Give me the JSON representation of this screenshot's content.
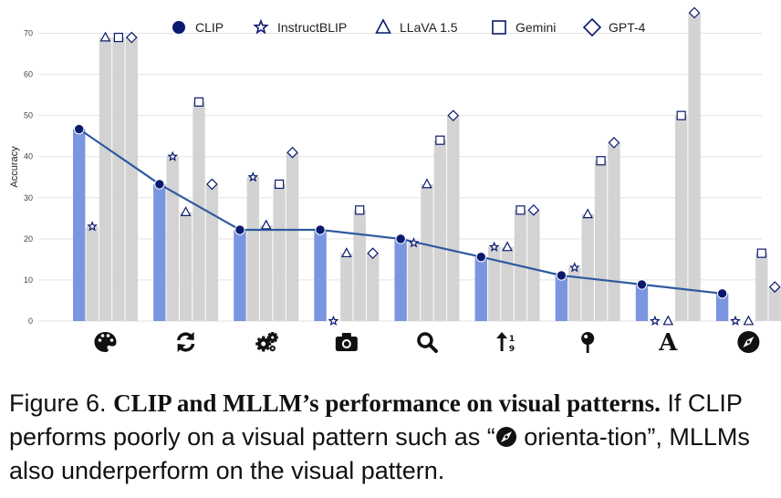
{
  "chart_data": {
    "type": "bar",
    "categories": [
      "color-appearance-icon",
      "state-condition-icon",
      "mechanical-structure-icon",
      "viewpoint-camera-icon",
      "presence-features-icon",
      "quantity-count-icon",
      "positional-context-icon",
      "text-icon",
      "orientation-direction-icon"
    ],
    "series": [
      {
        "name": "CLIP",
        "values": [
          46.7,
          33.3,
          22.2,
          22.2,
          20.0,
          15.6,
          11.1,
          8.9,
          6.7
        ],
        "color": "#7b96e0",
        "marker": "circle"
      },
      {
        "name": "InstructBLIP",
        "values": [
          23.0,
          40.0,
          35.0,
          0.0,
          19.0,
          18.0,
          13.0,
          0.0,
          0.0
        ],
        "color": "#d3d3d3",
        "marker": "star"
      },
      {
        "name": "LLaVA 1.5",
        "values": [
          69.0,
          26.5,
          23.3,
          16.5,
          33.3,
          18.0,
          26.0,
          0.0,
          0.0
        ],
        "color": "#d3d3d3",
        "marker": "triangle"
      },
      {
        "name": "Gemini",
        "values": [
          69.0,
          53.3,
          33.3,
          27.0,
          44.0,
          27.0,
          39.0,
          50.0,
          16.5
        ],
        "color": "#d3d3d3",
        "marker": "square"
      },
      {
        "name": "GPT-4",
        "values": [
          69.0,
          33.3,
          41.0,
          16.5,
          50.0,
          27.0,
          43.4,
          75.0,
          8.3
        ],
        "color": "#d3d3d3",
        "marker": "diamond"
      }
    ],
    "ylabel": "Accuracy",
    "ylim": [
      0,
      75
    ],
    "yticks": [
      0,
      10,
      20,
      30,
      40,
      50,
      60,
      70
    ],
    "grid": true,
    "legend_position": "top",
    "line_series": "CLIP",
    "line_color": "#2f5aa0",
    "marker_color": "#0a1a6e"
  },
  "caption": {
    "figure_label": "Figure 6.",
    "title": "CLIP and MLLM’s performance on visual patterns.",
    "text_before_icon": "If CLIP performs poorly on a visual pattern such as “",
    "icon": "orientation-direction-icon",
    "text_after_icon": " orienta-tion”, MLLMs also underperform on the visual pattern."
  }
}
